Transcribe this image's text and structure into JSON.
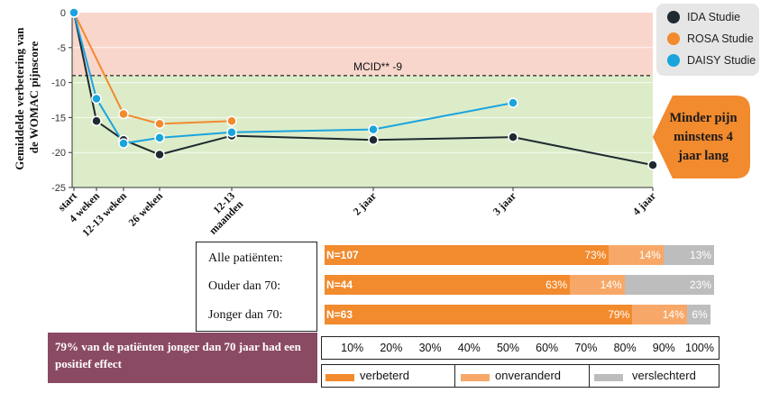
{
  "chart_data": [
    {
      "type": "line",
      "ylabel_line1": "Gemiddelde verbetering van",
      "ylabel_line2": "de WOMAC pijnscore",
      "ylim": [
        -25,
        0
      ],
      "yticks": [
        "0",
        "-5",
        "-10",
        "-15",
        "-20",
        "-25"
      ],
      "x_categories": [
        "start",
        "4 weken",
        "12-13 weken",
        "26 weken",
        "12-13 maanden",
        "2 jaar",
        "3 jaar",
        "4 jaar"
      ],
      "x_tick_lines": [
        [
          "start"
        ],
        [
          "4 weken"
        ],
        [
          "12-13 weken"
        ],
        [
          "26 weken"
        ],
        [
          "12-13",
          "maanden"
        ],
        [
          "2 jaar"
        ],
        [
          "3 jaar"
        ],
        [
          "4 jaar"
        ]
      ],
      "reference_line": {
        "label": "MCID** -9",
        "value": -9
      },
      "series": [
        {
          "name": "IDA Studie",
          "color": "#1f2a30",
          "points": [
            [
              "start",
              0
            ],
            [
              "4 weken",
              -15.5
            ],
            [
              "12-13 weken",
              -18.2
            ],
            [
              "26 weken",
              -20.3
            ],
            [
              "12-13 maanden",
              -17.6
            ],
            [
              "2 jaar",
              -18.2
            ],
            [
              "3 jaar",
              -17.8
            ],
            [
              "4 jaar",
              -21.8
            ]
          ]
        },
        {
          "name": "ROSA Studie",
          "color": "#f28a2e",
          "points": [
            [
              "start",
              0
            ],
            [
              "12-13 weken",
              -14.5
            ],
            [
              "26 weken",
              -15.9
            ],
            [
              "12-13 maanden",
              -15.5
            ]
          ]
        },
        {
          "name": "DAISY Studie",
          "color": "#1aa4de",
          "points": [
            [
              "start",
              0
            ],
            [
              "4 weken",
              -12.3
            ],
            [
              "12-13 weken",
              -18.7
            ],
            [
              "26 weken",
              -17.9
            ],
            [
              "12-13 maanden",
              -17.1
            ],
            [
              "2 jaar",
              -16.7
            ],
            [
              "3 jaar",
              -12.9
            ]
          ]
        }
      ],
      "zones": {
        "above_mcid_color": "#f9d6cc",
        "below_mcid_color": "#dcecc9"
      },
      "callout_lines": [
        "Minder pijn",
        "minstens 4",
        "jaar lang"
      ],
      "callout_color": "#f28a2e"
    },
    {
      "type": "bar",
      "stacked": true,
      "categories": [
        "Alle patiënten:",
        "Ouder dan 70:",
        "Jonger dan 70:"
      ],
      "n_labels": [
        "N=107",
        "N=44",
        "N=63"
      ],
      "series": [
        {
          "name": "verbeterd",
          "color": "#f28a2e",
          "values": [
            73,
            63,
            79
          ]
        },
        {
          "name": "onveranderd",
          "color": "#f7a868",
          "values": [
            14,
            14,
            14
          ]
        },
        {
          "name": "verslechterd",
          "color": "#bdbdbd",
          "values": [
            13,
            23,
            6
          ]
        }
      ],
      "value_labels": [
        [
          "73%",
          "14%",
          "13%"
        ],
        [
          "63%",
          "14%",
          "23%"
        ],
        [
          "79%",
          "14%",
          "6%"
        ]
      ],
      "xticks": [
        "10%",
        "20%",
        "30%",
        "40%",
        "50%",
        "60%",
        "70%",
        "80%",
        "90%",
        "100%"
      ],
      "conclusion": "79% van de patiënten jonger dan 70 jaar had een positief effect"
    }
  ]
}
